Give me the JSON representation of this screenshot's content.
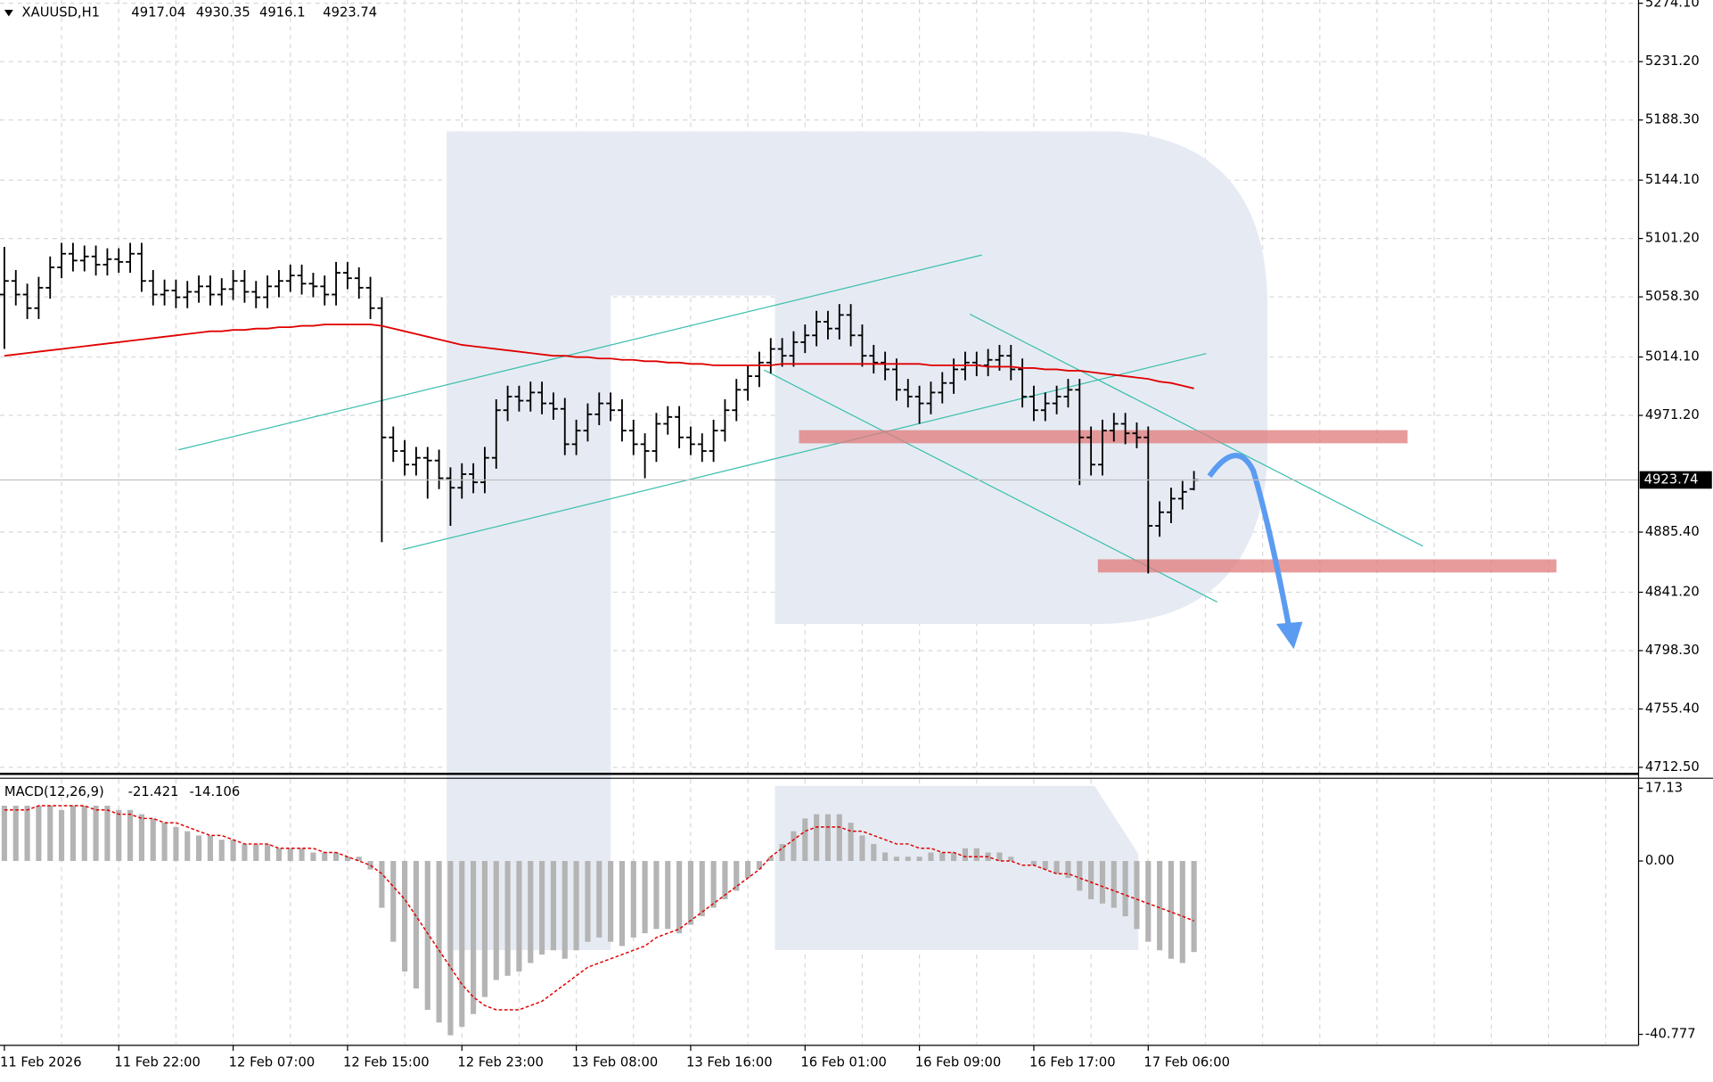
{
  "chart_data": {
    "type": "ohlc",
    "symbol": "XAUUSD,H1",
    "bars": [
      [
        5060,
        5095,
        5020,
        5070
      ],
      [
        5070,
        5078,
        5052,
        5060
      ],
      [
        5060,
        5068,
        5042,
        5050
      ],
      [
        5050,
        5073,
        5042,
        5065
      ],
      [
        5065,
        5088,
        5057,
        5080
      ],
      [
        5080,
        5098,
        5072,
        5090
      ],
      [
        5090,
        5098,
        5077,
        5085
      ],
      [
        5085,
        5096,
        5077,
        5088
      ],
      [
        5088,
        5096,
        5074,
        5082
      ],
      [
        5082,
        5094,
        5074,
        5086
      ],
      [
        5086,
        5094,
        5076,
        5084
      ],
      [
        5084,
        5098,
        5076,
        5090
      ],
      [
        5090,
        5098,
        5062,
        5070
      ],
      [
        5070,
        5078,
        5052,
        5060
      ],
      [
        5060,
        5071,
        5052,
        5063
      ],
      [
        5063,
        5071,
        5050,
        5058
      ],
      [
        5058,
        5070,
        5050,
        5062
      ],
      [
        5062,
        5074,
        5054,
        5066
      ],
      [
        5066,
        5074,
        5052,
        5060
      ],
      [
        5060,
        5072,
        5052,
        5064
      ],
      [
        5064,
        5078,
        5056,
        5070
      ],
      [
        5070,
        5078,
        5054,
        5062
      ],
      [
        5062,
        5070,
        5050,
        5058
      ],
      [
        5058,
        5074,
        5050,
        5066
      ],
      [
        5066,
        5078,
        5058,
        5070
      ],
      [
        5070,
        5082,
        5062,
        5074
      ],
      [
        5074,
        5082,
        5060,
        5068
      ],
      [
        5068,
        5076,
        5058,
        5066
      ],
      [
        5066,
        5074,
        5052,
        5060
      ],
      [
        5060,
        5084,
        5052,
        5076
      ],
      [
        5076,
        5084,
        5064,
        5072
      ],
      [
        5072,
        5080,
        5057,
        5065
      ],
      [
        5065,
        5073,
        5042,
        5050
      ],
      [
        5050,
        5058,
        4878,
        4955
      ],
      [
        4955,
        4963,
        4937,
        4945
      ],
      [
        4945,
        4953,
        4927,
        4935
      ],
      [
        4935,
        4948,
        4927,
        4940
      ],
      [
        4940,
        4948,
        4910,
        4938
      ],
      [
        4938,
        4946,
        4917,
        4925
      ],
      [
        4925,
        4933,
        4890,
        4918
      ],
      [
        4918,
        4936,
        4910,
        4928
      ],
      [
        4928,
        4936,
        4914,
        4922
      ],
      [
        4922,
        4948,
        4914,
        4940
      ],
      [
        4940,
        4983,
        4932,
        4975
      ],
      [
        4975,
        4993,
        4967,
        4985
      ],
      [
        4985,
        4993,
        4974,
        4982
      ],
      [
        4982,
        4996,
        4974,
        4988
      ],
      [
        4988,
        4996,
        4972,
        4980
      ],
      [
        4980,
        4988,
        4968,
        4976
      ],
      [
        4976,
        4984,
        4942,
        4950
      ],
      [
        4950,
        4968,
        4942,
        4960
      ],
      [
        4960,
        4980,
        4952,
        4972
      ],
      [
        4972,
        4988,
        4964,
        4980
      ],
      [
        4980,
        4988,
        4967,
        4975
      ],
      [
        4975,
        4983,
        4952,
        4960
      ],
      [
        4960,
        4968,
        4942,
        4950
      ],
      [
        4950,
        4958,
        4925,
        4945
      ],
      [
        4945,
        4973,
        4937,
        4965
      ],
      [
        4965,
        4978,
        4957,
        4970
      ],
      [
        4970,
        4978,
        4947,
        4955
      ],
      [
        4955,
        4963,
        4942,
        4950
      ],
      [
        4950,
        4958,
        4937,
        4945
      ],
      [
        4945,
        4968,
        4937,
        4960
      ],
      [
        4960,
        4983,
        4952,
        4975
      ],
      [
        4975,
        4998,
        4967,
        4990
      ],
      [
        4990,
        5008,
        4982,
        5000
      ],
      [
        5000,
        5018,
        4992,
        5010
      ],
      [
        5010,
        5028,
        5002,
        5020
      ],
      [
        5020,
        5028,
        5007,
        5015
      ],
      [
        5015,
        5033,
        5007,
        5025
      ],
      [
        5025,
        5038,
        5017,
        5030
      ],
      [
        5030,
        5048,
        5022,
        5040
      ],
      [
        5040,
        5048,
        5027,
        5035
      ],
      [
        5035,
        5053,
        5027,
        5045
      ],
      [
        5045,
        5053,
        5022,
        5030
      ],
      [
        5030,
        5038,
        5007,
        5015
      ],
      [
        5015,
        5023,
        5002,
        5010
      ],
      [
        5010,
        5018,
        4997,
        5005
      ],
      [
        5005,
        5013,
        4982,
        4990
      ],
      [
        4990,
        4998,
        4977,
        4985
      ],
      [
        4985,
        4993,
        4965,
        4980
      ],
      [
        4980,
        4996,
        4972,
        4988
      ],
      [
        4988,
        5003,
        4980,
        4995
      ],
      [
        4995,
        5013,
        4987,
        5005
      ],
      [
        5005,
        5018,
        4997,
        5010
      ],
      [
        5010,
        5018,
        5000,
        5008
      ],
      [
        5008,
        5020,
        5000,
        5012
      ],
      [
        5012,
        5023,
        5004,
        5015
      ],
      [
        5015,
        5023,
        4997,
        5005
      ],
      [
        5005,
        5013,
        4977,
        4985
      ],
      [
        4985,
        4993,
        4967,
        4975
      ],
      [
        4975,
        4988,
        4967,
        4980
      ],
      [
        4980,
        4993,
        4972,
        4985
      ],
      [
        4985,
        4998,
        4977,
        4990
      ],
      [
        4990,
        4998,
        4920,
        4955
      ],
      [
        4955,
        4963,
        4927,
        4935
      ],
      [
        4935,
        4968,
        4927,
        4960
      ],
      [
        4960,
        4973,
        4952,
        4965
      ],
      [
        4965,
        4973,
        4950,
        4958
      ],
      [
        4958,
        4966,
        4947,
        4955
      ],
      [
        4955,
        4963,
        4855,
        4890
      ],
      [
        4890,
        4908,
        4882,
        4900
      ],
      [
        4900,
        4918,
        4892,
        4910
      ],
      [
        4910,
        4923,
        4902,
        4915
      ],
      [
        4917.04,
        4930.35,
        4916.1,
        4923.74
      ]
    ],
    "categories": [
      "11 Feb 2026",
      null,
      null,
      null,
      null,
      null,
      null,
      null,
      null,
      null,
      "11 Feb 22:00",
      null,
      null,
      null,
      null,
      null,
      null,
      null,
      null,
      null,
      "12 Feb 07:00",
      null,
      null,
      null,
      null,
      null,
      null,
      null,
      null,
      null,
      "12 Feb 15:00",
      null,
      null,
      null,
      null,
      null,
      null,
      null,
      null,
      null,
      "12 Feb 23:00",
      null,
      null,
      null,
      null,
      null,
      null,
      null,
      null,
      null,
      "13 Feb 08:00",
      null,
      null,
      null,
      null,
      null,
      null,
      null,
      null,
      null,
      "13 Feb 16:00",
      null,
      null,
      null,
      null,
      null,
      null,
      null,
      null,
      null,
      "16 Feb 01:00",
      null,
      null,
      null,
      null,
      null,
      null,
      null,
      null,
      null,
      "16 Feb 09:00",
      null,
      null,
      null,
      null,
      null,
      null,
      null,
      null,
      null,
      "16 Feb 17:00",
      null,
      null,
      null,
      null,
      null,
      null,
      null,
      null,
      null,
      "17 Feb 06:00",
      null,
      null,
      null,
      null
    ],
    "ylim": [
      4708.5,
      5276.5
    ],
    "yticks": [
      {
        "value": 5274.1,
        "label": "5274.10"
      },
      {
        "value": 5231.2,
        "label": "5231.20"
      },
      {
        "value": 5188.3,
        "label": "5188.30"
      },
      {
        "value": 5144.1,
        "label": "5144.10"
      },
      {
        "value": 5101.2,
        "label": "5101.20"
      },
      {
        "value": 5058.3,
        "label": "5058.30"
      },
      {
        "value": 5014.1,
        "label": "5014.10"
      },
      {
        "value": 4971.2,
        "label": "4971.20"
      },
      {
        "value": 4885.4,
        "label": "4885.40"
      },
      {
        "value": 4841.2,
        "label": "4841.20"
      },
      {
        "value": 4798.3,
        "label": "4798.30"
      },
      {
        "value": 4755.4,
        "label": "4755.40"
      },
      {
        "value": 4712.5,
        "label": "4712.50"
      }
    ],
    "grid": true,
    "bar_color": "#000000",
    "ma": {
      "color": "#e00000",
      "values": [
        5015,
        5016,
        5017,
        5018,
        5019,
        5020,
        5021,
        5022,
        5023,
        5024,
        5025,
        5026,
        5027,
        5028,
        5029,
        5030,
        5031,
        5032,
        5033,
        5033,
        5034,
        5034,
        5035,
        5035,
        5036,
        5036,
        5037,
        5037,
        5038,
        5038,
        5038,
        5038,
        5038,
        5037,
        5035,
        5033,
        5031,
        5029,
        5027,
        5025,
        5023,
        5022,
        5021,
        5020,
        5019,
        5018,
        5017,
        5016,
        5015,
        5015,
        5014,
        5014,
        5013,
        5013,
        5012,
        5012,
        5011,
        5011,
        5010,
        5010,
        5009,
        5009,
        5008,
        5008,
        5008,
        5008,
        5008,
        5008,
        5009,
        5009,
        5009,
        5009,
        5009,
        5009,
        5009,
        5009,
        5009,
        5009,
        5009,
        5009,
        5009,
        5008,
        5008,
        5008,
        5008,
        5008,
        5007,
        5007,
        5007,
        5006,
        5006,
        5005,
        5005,
        5004,
        5004,
        5003,
        5002,
        5001,
        5000,
        4999,
        4998,
        4996,
        4995,
        4993,
        4991
      ]
    },
    "macd": {
      "type": "macd",
      "name": "MACD(12,26,9)",
      "histogram": {
        "color": "#b4b4b4",
        "values": [
          13,
          13,
          13,
          13,
          13,
          12,
          13,
          13,
          13,
          13,
          12,
          12,
          11,
          10,
          9,
          8,
          7,
          6,
          6,
          5,
          5,
          4,
          4,
          4,
          3,
          3,
          3,
          2,
          2,
          2,
          1,
          1,
          -2,
          -11,
          -19,
          -26,
          -30,
          -35,
          -38,
          -41,
          -39,
          -36,
          -32,
          -28,
          -27,
          -26,
          -24,
          -22,
          -21,
          -23,
          -21,
          -19,
          -18,
          -19,
          -20,
          -18,
          -17,
          -16,
          -16,
          -17,
          -15,
          -13,
          -11,
          -9,
          -7,
          -4,
          -2,
          1,
          4,
          7,
          10,
          11,
          11,
          11,
          9,
          6,
          4,
          2,
          1,
          1,
          1,
          2,
          2,
          2,
          3,
          3,
          2,
          2,
          1,
          0,
          -1,
          -2,
          -3,
          -4,
          -7,
          -9,
          -10,
          -11,
          -13,
          -16,
          -19,
          -21,
          -23,
          -24,
          -21.421
        ]
      },
      "signal": {
        "color": "#e00000",
        "values": [
          12,
          12,
          12,
          13,
          13,
          13,
          13,
          13,
          12,
          12,
          11,
          11,
          10,
          10,
          9,
          9,
          8,
          7,
          6,
          6,
          5,
          4,
          4,
          4,
          3,
          3,
          3,
          3,
          2,
          2,
          1,
          0,
          -1,
          -3,
          -6,
          -9,
          -13,
          -17,
          -21,
          -25,
          -29,
          -32,
          -34,
          -35,
          -35,
          -35,
          -34,
          -33,
          -31,
          -29,
          -27,
          -25,
          -24,
          -23,
          -22,
          -21,
          -20,
          -18,
          -17,
          -16,
          -14,
          -12,
          -10,
          -8,
          -6,
          -4,
          -2,
          1,
          3,
          5,
          7,
          8,
          8,
          8,
          7,
          7,
          6,
          5,
          4,
          4,
          3,
          3,
          2,
          2,
          1,
          1,
          1,
          0,
          0,
          -1,
          -1,
          -2,
          -3,
          -3,
          -4,
          -5,
          -6,
          -7,
          -8,
          -9,
          -10,
          -11,
          -12,
          -13,
          -14.106
        ]
      },
      "ylim": [
        -43.36,
        19.46
      ],
      "yticks": [
        17.13,
        {
          "value": 0,
          "label": "0.00"
        },
        -40.777
      ]
    }
  }
}
